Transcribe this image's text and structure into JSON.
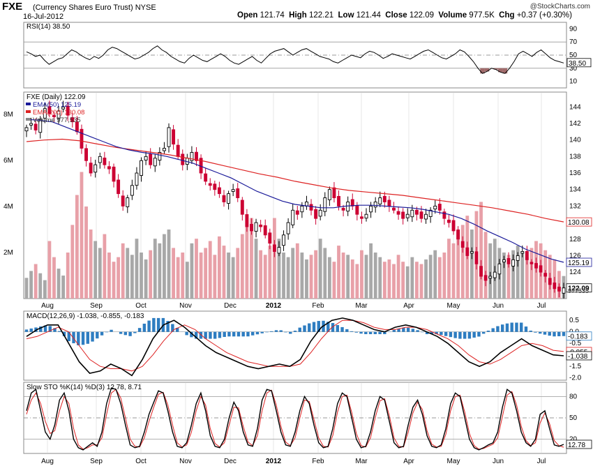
{
  "header": {
    "symbol": "FXE",
    "description": "(Currency Shares Euro Trust)",
    "exchange": "NYSE",
    "date": "16-Jul-2012",
    "open_label": "Open",
    "open": "121.74",
    "high_label": "High",
    "high": "122.21",
    "low_label": "Low",
    "low": "121.44",
    "close_label": "Close",
    "close": "122.09",
    "volume_label": "Volume",
    "volume": "977.5K",
    "chg_label": "Chg",
    "chg": "+0.37 (+0.30%)",
    "watermark": "@StockCharts.com"
  },
  "colors": {
    "up": "#000000",
    "down": "#cc0033",
    "ema50": "#1a1a99",
    "ema200": "#dd2222",
    "volume_up": "#a8a8a8",
    "volume_down": "#e8a0a8",
    "macd_hist": "#2e7dc1",
    "rsi_fill": "#a06a6a",
    "grid": "#cfcfcf"
  },
  "chart_data": [
    {
      "type": "line",
      "title": "RSI(14) 38.50",
      "ylim": [
        0,
        100
      ],
      "ticks": [
        "90",
        "70",
        "50",
        "30",
        "10"
      ],
      "reference_lines": [
        30,
        50,
        70
      ],
      "last_value_label": "38.50",
      "values": [
        55,
        52,
        48,
        50,
        42,
        36,
        40,
        44,
        46,
        52,
        58,
        55,
        50,
        46,
        43,
        48,
        45,
        50,
        58,
        62,
        60,
        56,
        52,
        48,
        44,
        46,
        50,
        54,
        60,
        64,
        58,
        54,
        48,
        44,
        40,
        38,
        45,
        50,
        46,
        42,
        40,
        44,
        48,
        52,
        48,
        42,
        38,
        36,
        40,
        44,
        48,
        42,
        38,
        45,
        52,
        56,
        58,
        60,
        55,
        50,
        54,
        58,
        60,
        56,
        52,
        48,
        46,
        44,
        40,
        38,
        42,
        46,
        50,
        48,
        46,
        52,
        56,
        54,
        50,
        45,
        48,
        52,
        50,
        48,
        46,
        44,
        48,
        52,
        56,
        58,
        54,
        50,
        46,
        44,
        48,
        52,
        58,
        55,
        48,
        40,
        30,
        22,
        25,
        30,
        28,
        24,
        22,
        30,
        40,
        52,
        56,
        52,
        48,
        54,
        58,
        52,
        46,
        42,
        40,
        38
      ]
    },
    {
      "type": "candlestick",
      "title": "FXE (Daily) 122.09",
      "ylim": [
        120.8,
        145.8
      ],
      "ticks": [
        "144",
        "142",
        "140",
        "138",
        "136",
        "134",
        "132",
        "130",
        "128",
        "126",
        "124",
        "122"
      ],
      "x_ticks": [
        "Aug",
        "Sep",
        "Oct",
        "Nov",
        "Dec",
        "2012",
        "Feb",
        "Mar",
        "Apr",
        "May",
        "Jun",
        "Jul"
      ],
      "volume_ticks": [
        "8M",
        "6M",
        "4M",
        "2M"
      ],
      "legend": [
        {
          "name": "EMA(50) 125.19",
          "color": "#1a1a99"
        },
        {
          "name": "EMA(200) 130.08",
          "color": "#dd2222"
        },
        {
          "name": "Volume 977,535",
          "color": "#888888"
        }
      ],
      "last_labels": {
        "close": "122.09",
        "ema50": "125.19",
        "ema200": "130.08",
        "volume": "977535"
      },
      "close": [
        141.5,
        142.0,
        141.2,
        142.5,
        143.8,
        143.2,
        142.8,
        143.5,
        144.0,
        143.0,
        142.2,
        141.0,
        139.0,
        137.5,
        136.0,
        137.0,
        138.0,
        137.0,
        136.5,
        135.0,
        133.5,
        132.0,
        133.0,
        134.5,
        136.0,
        137.5,
        138.0,
        137.0,
        137.8,
        138.5,
        139.0,
        141.5,
        139.5,
        138.0,
        137.0,
        137.8,
        138.5,
        137.5,
        136.0,
        135.0,
        134.5,
        134.0,
        133.5,
        132.5,
        133.5,
        134.0,
        133.0,
        131.0,
        129.5,
        129.0,
        130.0,
        129.5,
        128.5,
        127.5,
        126.5,
        127.0,
        128.5,
        130.0,
        131.5,
        131.0,
        132.0,
        132.5,
        131.5,
        130.5,
        131.5,
        133.0,
        134.0,
        133.0,
        132.0,
        131.5,
        132.5,
        132.0,
        131.0,
        130.5,
        131.0,
        132.0,
        132.5,
        133.0,
        132.5,
        132.0,
        131.5,
        131.0,
        130.5,
        131.0,
        131.5,
        131.0,
        130.5,
        131.0,
        131.5,
        132.0,
        131.5,
        130.5,
        130.0,
        129.0,
        128.0,
        127.0,
        126.0,
        126.5,
        125.0,
        123.5,
        123.0,
        123.5,
        124.0,
        125.0,
        125.5,
        125.0,
        125.5,
        126.0,
        126.5,
        125.5,
        125.0,
        124.5,
        124.0,
        123.5,
        122.5,
        122.0,
        121.7,
        122.09
      ],
      "ema50": [
        142.5,
        142.4,
        142.2,
        141.6,
        141.0,
        140.4,
        139.8,
        139.2,
        138.8,
        138.5,
        138.3,
        138.0,
        137.6,
        137.2,
        136.6,
        136.0,
        135.4,
        134.6,
        133.8,
        133.2,
        132.6,
        132.2,
        132.0,
        131.8,
        131.8,
        132.0,
        132.1,
        132.1,
        132.0,
        131.9,
        131.8,
        131.6,
        131.3,
        131.0,
        130.5,
        129.8,
        129.0,
        128.3,
        127.6,
        126.8,
        126.2,
        125.6,
        125.19
      ],
      "ema200": [
        139.8,
        140.0,
        140.1,
        139.9,
        139.5,
        139.1,
        138.8,
        138.5,
        138.2,
        137.8,
        137.4,
        136.9,
        136.4,
        135.9,
        135.5,
        135.0,
        134.6,
        134.2,
        133.9,
        133.7,
        133.5,
        133.3,
        133.0,
        132.7,
        132.4,
        132.1,
        131.8,
        131.4,
        131.0,
        130.5,
        130.08
      ],
      "volume_millions": [
        0.9,
        1.2,
        1.5,
        1.1,
        0.8,
        2.5,
        1.8,
        1.3,
        1.0,
        2.0,
        3.2,
        4.5,
        5.5,
        4.0,
        3.0,
        2.5,
        2.2,
        2.8,
        2.0,
        1.6,
        1.8,
        2.4,
        2.2,
        1.9,
        2.6,
        2.0,
        1.7,
        2.1,
        2.6,
        2.4,
        2.8,
        3.0,
        2.2,
        1.8,
        2.0,
        1.6,
        2.4,
        2.6,
        2.0,
        2.2,
        2.5,
        1.9,
        2.7,
        2.3,
        2.0,
        1.8,
        2.2,
        2.8,
        3.2,
        3.5,
        2.6,
        2.1,
        1.9,
        2.3,
        3.5,
        2.6,
        2.0,
        1.8,
        2.2,
        2.4,
        2.0,
        1.7,
        1.9,
        2.1,
        2.6,
        2.2,
        1.8,
        1.6,
        2.3,
        2.0,
        1.9,
        1.7,
        1.5,
        2.1,
        1.9,
        2.4,
        2.0,
        1.8,
        1.6,
        1.7,
        1.5,
        1.9,
        1.6,
        1.4,
        1.8,
        1.6,
        1.5,
        1.7,
        1.9,
        2.1,
        1.8,
        2.0,
        2.6,
        2.4,
        2.9,
        3.2,
        3.6,
        3.0,
        3.8,
        4.2,
        2.9,
        2.4,
        2.6,
        2.2,
        2.0,
        1.9,
        2.1,
        2.3,
        2.0,
        1.8,
        2.2,
        2.5,
        2.4,
        2.1,
        1.9,
        1.7,
        1.2,
        0.98
      ]
    },
    {
      "type": "line",
      "title": "MACD(12,26,9) -1.038, -0.855, -0.183",
      "ylim": [
        -2.1,
        0.9
      ],
      "ticks": [
        "0.5",
        "0.0",
        "-0.5",
        "-1.0",
        "-1.5",
        "-2.0"
      ],
      "last_labels": {
        "histogram": "-0.183",
        "signal": "-0.855",
        "macd": "-1.038"
      },
      "macd": [
        -0.2,
        0.1,
        0.3,
        0.3,
        -0.5,
        -1.3,
        -1.8,
        -1.7,
        -1.4,
        -1.6,
        -1.9,
        -1.2,
        -0.3,
        0.3,
        0.5,
        0.2,
        -0.2,
        -0.6,
        -0.9,
        -1.1,
        -1.3,
        -1.5,
        -1.6,
        -1.5,
        -1.4,
        -1.5,
        -1.2,
        -0.4,
        0.2,
        0.5,
        0.6,
        0.5,
        0.3,
        0.1,
        0.0,
        0.2,
        0.3,
        0.2,
        0.0,
        -0.2,
        -0.5,
        -0.9,
        -1.3,
        -1.5,
        -1.3,
        -0.9,
        -0.6,
        -0.3,
        -0.6,
        -0.8,
        -1.0,
        -1.038
      ],
      "signal": [
        -0.3,
        -0.2,
        0.0,
        0.2,
        0.0,
        -0.6,
        -1.2,
        -1.5,
        -1.6,
        -1.6,
        -1.7,
        -1.5,
        -1.0,
        -0.4,
        0.1,
        0.3,
        0.1,
        -0.3,
        -0.6,
        -0.9,
        -1.1,
        -1.3,
        -1.4,
        -1.5,
        -1.5,
        -1.5,
        -1.4,
        -0.9,
        -0.3,
        0.2,
        0.5,
        0.5,
        0.4,
        0.2,
        0.1,
        0.1,
        0.2,
        0.2,
        0.1,
        -0.1,
        -0.3,
        -0.6,
        -1.0,
        -1.3,
        -1.4,
        -1.2,
        -0.9,
        -0.6,
        -0.5,
        -0.6,
        -0.8,
        -0.855
      ],
      "histogram": [
        0.1,
        0.2,
        0.3,
        0.1,
        -0.4,
        -0.6,
        -0.5,
        -0.2,
        0.1,
        -0.1,
        -0.2,
        0.3,
        0.6,
        0.6,
        0.3,
        -0.1,
        -0.3,
        -0.3,
        -0.3,
        -0.2,
        -0.2,
        -0.2,
        -0.1,
        0.0,
        0.1,
        -0.1,
        0.2,
        0.4,
        0.5,
        0.4,
        0.2,
        0.0,
        -0.1,
        -0.1,
        -0.1,
        0.1,
        0.2,
        0.1,
        -0.1,
        -0.1,
        -0.2,
        -0.3,
        -0.3,
        -0.2,
        0.1,
        0.3,
        0.4,
        0.4,
        0.0,
        -0.1,
        -0.2,
        -0.183
      ]
    },
    {
      "type": "line",
      "title": "Slow STO %K(14) %D(3) 12.78, 8.71",
      "ylim": [
        0,
        100
      ],
      "ticks": [
        "80",
        "50",
        "20"
      ],
      "reference_lines": [
        20,
        50,
        80
      ],
      "last_labels": {
        "k": "12.78"
      },
      "k": [
        60,
        85,
        90,
        60,
        30,
        20,
        40,
        75,
        85,
        60,
        20,
        8,
        5,
        10,
        15,
        10,
        30,
        70,
        92,
        90,
        70,
        40,
        12,
        8,
        10,
        30,
        55,
        72,
        88,
        85,
        60,
        30,
        10,
        8,
        15,
        40,
        70,
        85,
        60,
        25,
        10,
        8,
        20,
        50,
        72,
        60,
        30,
        12,
        10,
        35,
        75,
        90,
        88,
        60,
        30,
        12,
        10,
        30,
        60,
        80,
        70,
        40,
        15,
        8,
        10,
        35,
        70,
        85,
        80,
        50,
        20,
        8,
        10,
        30,
        60,
        80,
        75,
        45,
        15,
        8,
        10,
        40,
        65,
        75,
        55,
        25,
        10,
        8,
        12,
        35,
        70,
        85,
        80,
        50,
        20,
        8,
        5,
        8,
        12,
        15,
        30,
        65,
        90,
        85,
        60,
        30,
        15,
        10,
        20,
        55,
        60,
        35,
        12,
        10,
        12.78
      ],
      "d": [
        55,
        75,
        85,
        70,
        45,
        28,
        32,
        60,
        80,
        70,
        35,
        12,
        6,
        8,
        12,
        12,
        22,
        55,
        85,
        90,
        78,
        50,
        20,
        10,
        9,
        22,
        45,
        65,
        83,
        86,
        68,
        40,
        15,
        9,
        12,
        30,
        60,
        80,
        68,
        35,
        14,
        9,
        15,
        40,
        65,
        64,
        38,
        16,
        11,
        25,
        60,
        85,
        89,
        68,
        38,
        16,
        11,
        22,
        50,
        75,
        73,
        48,
        22,
        10,
        9,
        25,
        58,
        80,
        82,
        58,
        28,
        11,
        9,
        22,
        50,
        74,
        77,
        53,
        22,
        10,
        9,
        30,
        57,
        72,
        62,
        32,
        13,
        9,
        10,
        27,
        60,
        80,
        82,
        58,
        28,
        11,
        6,
        7,
        10,
        13,
        22,
        52,
        82,
        87,
        68,
        38,
        18,
        11,
        15,
        43,
        57,
        42,
        18,
        11,
        8.71
      ]
    }
  ]
}
